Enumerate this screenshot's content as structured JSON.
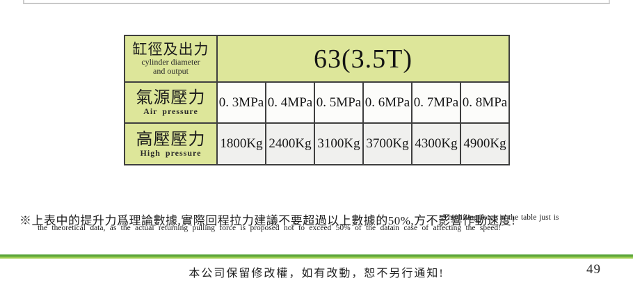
{
  "colors": {
    "table_header_bg": "#dde69a",
    "table_border": "#3f3f3f",
    "row2_cell_bg": "#fcfcfa",
    "row3_cell_bg": "#f0f0ee",
    "divider_green_dark": "#4f9d33",
    "divider_green_light": "#b4da70",
    "top_edge_gray": "#c9c9c9"
  },
  "table": {
    "header": {
      "label_cn": "缸徑及出力",
      "label_en_line1": "cylinder diameter",
      "label_en_line2": "and output",
      "model": "63(3.5T)"
    },
    "rows": [
      {
        "label_cn": "氣源壓力",
        "label_en": "Air pressure",
        "values": [
          "0. 3MPa",
          "0. 4MPa",
          "0. 5MPa",
          "0. 6MPa",
          "0. 7MPa",
          "0. 8MPa"
        ]
      },
      {
        "label_cn": "高壓壓力",
        "label_en": "High pressure",
        "values": [
          "1800Kg",
          "2400Kg",
          "3100Kg",
          "3700Kg",
          "4300Kg",
          "4900Kg"
        ]
      }
    ]
  },
  "footnote": {
    "cn_line": "※上表中的提升力爲理論數據,實際回程拉力建議不要超過以上數據的50%,方不影響作動速度!",
    "en_tail_line1": "The lifting force in the table just is",
    "en_line2_left": "the theoretical data, as the actual returning pulling force is proposed not to exceed 50% of the data",
    "en_line2_right": "in case of affecting the speed!"
  },
  "footer": {
    "notice": "本公司保留修改權，如有改動，恕不另行通知!",
    "page_number": "49"
  }
}
